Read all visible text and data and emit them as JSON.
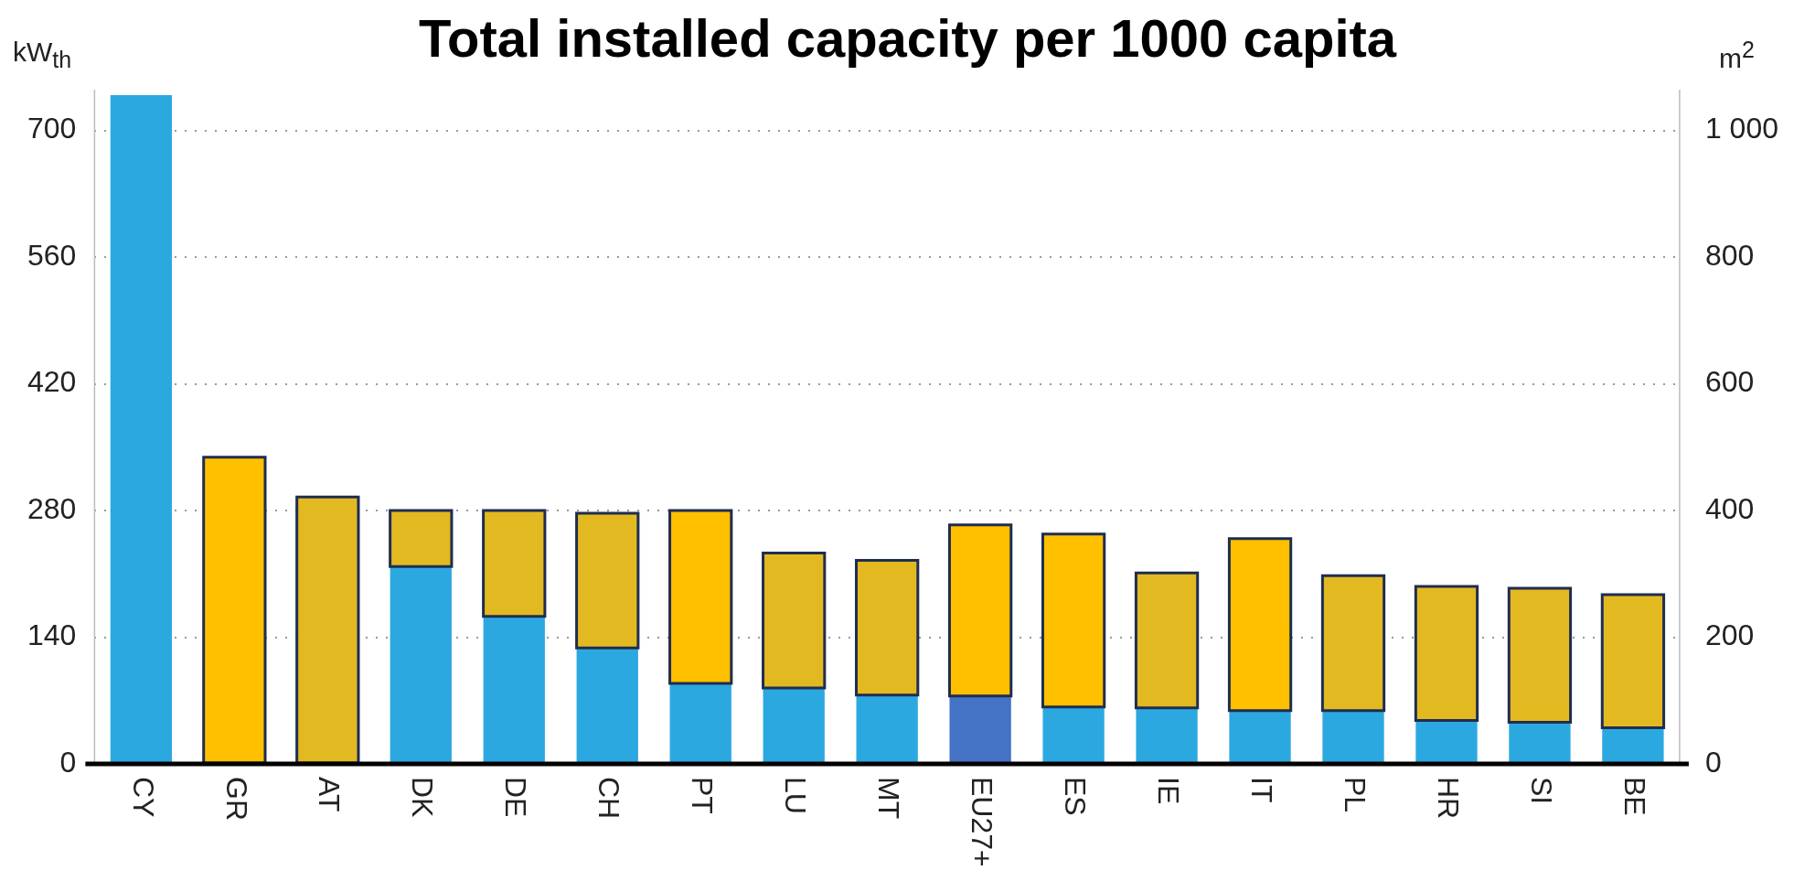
{
  "chart_data": {
    "type": "bar",
    "title": "Total installed capacity per 1000 capita",
    "ylabel": "kW$_{th}$",
    "y2label": "m$^{2}$",
    "categories": [
      "CY",
      "GR",
      "AT",
      "DK",
      "DE",
      "CH",
      "PT",
      "LU",
      "MT",
      "EU27+",
      "ES",
      "IE",
      "IT",
      "PL",
      "HR",
      "SI",
      "BE"
    ],
    "stacked": true,
    "series": [
      {
        "values": [
          739,
          0,
          null,
          218,
          163,
          128,
          89,
          84,
          76,
          75,
          63,
          62,
          59,
          59,
          48,
          46,
          40
        ],
        "colors": [
          "#2ca8e0",
          "#2ca8e0",
          "#2ca8e0",
          "#2ca8e0",
          "#2ca8e0",
          "#2ca8e0",
          "#2ca8e0",
          "#2ca8e0",
          "#2ca8e0",
          "#4472c4",
          "#2ca8e0",
          "#2ca8e0",
          "#2ca8e0",
          "#2ca8e0",
          "#2ca8e0",
          "#2ca8e0",
          "#2ca8e0"
        ]
      },
      {
        "values": [
          null,
          339,
          295,
          62,
          117,
          149,
          191,
          149,
          149,
          189,
          191,
          149,
          190,
          149,
          148,
          148,
          147
        ],
        "colors": [
          "#e2b920",
          "#ffc000",
          "#e2b920",
          "#e2b920",
          "#e2b920",
          "#e2b920",
          "#ffc000",
          "#e2b920",
          "#e2b920",
          "#ffc000",
          "#ffc000",
          "#e2b920",
          "#ffc000",
          "#e2b920",
          "#e2b920",
          "#e2b920",
          "#e2b920"
        ]
      }
    ],
    "ylim": [
      0,
      745
    ],
    "yticks": [
      0,
      140,
      280,
      420,
      560,
      700
    ],
    "y2lim": [
      0,
      1064
    ],
    "y2ticks": [
      0,
      200,
      400,
      600,
      800,
      {
        "value": 1000,
        "label": "1 000"
      }
    ],
    "grid": "y",
    "legend": false
  }
}
